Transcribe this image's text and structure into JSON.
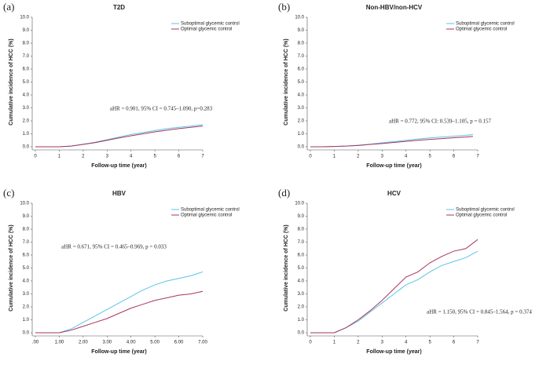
{
  "chart_data": [
    {
      "type": "line",
      "panel_label": "(a)",
      "title": "T2D",
      "ylabel": "Cumulative incidence of HCC (%)",
      "xlabel": "Follow-up time (year)",
      "annotation": "aHR = 0.901, 95% CI = 0.745–1.090, p=0.283",
      "x": [
        0,
        0.5,
        1,
        1.5,
        2,
        2.5,
        3,
        3.5,
        4,
        4.5,
        5,
        5.5,
        6,
        6.5,
        7
      ],
      "series": [
        {
          "name": "Suboptimal glycemic control",
          "color": "#5bc4e6",
          "values": [
            0,
            0,
            0,
            0.05,
            0.2,
            0.35,
            0.55,
            0.75,
            0.95,
            1.1,
            1.25,
            1.4,
            1.5,
            1.6,
            1.7
          ]
        },
        {
          "name": "Optimal glycemic control",
          "color": "#a8345e",
          "values": [
            0,
            0,
            0,
            0.05,
            0.18,
            0.32,
            0.5,
            0.68,
            0.85,
            1.0,
            1.15,
            1.28,
            1.4,
            1.5,
            1.6
          ]
        }
      ],
      "xlim": [
        0,
        7
      ],
      "xticks": [
        0,
        1,
        2,
        3,
        4,
        5,
        6,
        7
      ],
      "ylim": [
        0,
        10
      ],
      "yticks": [
        {
          "value": 0,
          "label": "0.0"
        },
        {
          "value": 1,
          "label": "1.0"
        },
        {
          "value": 2,
          "label": "2.0"
        },
        {
          "value": 3,
          "label": "3.0"
        },
        {
          "value": 4,
          "label": "4.0"
        },
        {
          "value": 5,
          "label": "5.0"
        },
        {
          "value": 6,
          "label": "6.0"
        },
        {
          "value": 7,
          "label": "7.0"
        },
        {
          "value": 8,
          "label": "8.0"
        },
        {
          "value": 9,
          "label": "9.0"
        },
        {
          "value": 10,
          "label": "10.0"
        }
      ]
    },
    {
      "type": "line",
      "panel_label": "(b)",
      "title": "Non-HBV/non-HCV",
      "ylabel": "Cumulative incidence of HCC (%)",
      "xlabel": "Follow-up time (year)",
      "annotation": "aHR = 0.772, 95% CI: 0.539–1.105, p = 0.157",
      "x": [
        0,
        0.5,
        1,
        1.5,
        2,
        2.5,
        3,
        3.5,
        4,
        4.5,
        5,
        5.5,
        6,
        6.5,
        6.8
      ],
      "series": [
        {
          "name": "Suboptimal glycemic control",
          "color": "#5bc4e6",
          "values": [
            0,
            0,
            0.02,
            0.05,
            0.12,
            0.2,
            0.3,
            0.4,
            0.5,
            0.6,
            0.68,
            0.75,
            0.82,
            0.88,
            0.95
          ]
        },
        {
          "name": "Optimal glycemic control",
          "color": "#a8345e",
          "values": [
            0,
            0,
            0.02,
            0.05,
            0.1,
            0.18,
            0.25,
            0.33,
            0.42,
            0.5,
            0.57,
            0.63,
            0.7,
            0.75,
            0.8
          ]
        }
      ],
      "xlim": [
        0,
        7
      ],
      "xticks": [
        0,
        1,
        2,
        3,
        4,
        5,
        6,
        7
      ],
      "ylim": [
        0,
        10
      ],
      "yticks": [
        {
          "value": 0,
          "label": "0.0"
        },
        {
          "value": 1,
          "label": "1.0"
        },
        {
          "value": 2,
          "label": "2.0"
        },
        {
          "value": 3,
          "label": "3.0"
        },
        {
          "value": 4,
          "label": "4.0"
        },
        {
          "value": 5,
          "label": "5.0"
        },
        {
          "value": 6,
          "label": "6.0"
        },
        {
          "value": 7,
          "label": "7.0"
        },
        {
          "value": 8,
          "label": "8.0"
        },
        {
          "value": 9,
          "label": "9.0"
        },
        {
          "value": 10,
          "label": "10.0"
        }
      ]
    },
    {
      "type": "line",
      "panel_label": "(c)",
      "title": "HBV",
      "ylabel": "Cumulative incidence of HCC (%)",
      "xlabel": "Follow-up time (year)",
      "annotation": "aHR = 0.671, 95% CI = 0.465–0.969, p = 0.033",
      "x": [
        0,
        0.5,
        1,
        1.5,
        2,
        2.5,
        3,
        3.5,
        4,
        4.5,
        5,
        5.5,
        6,
        6.5,
        7
      ],
      "series": [
        {
          "name": "Suboptimal glycemic control",
          "color": "#5bc4e6",
          "values": [
            0,
            0,
            0,
            0.3,
            0.8,
            1.3,
            1.8,
            2.3,
            2.8,
            3.3,
            3.7,
            4.0,
            4.2,
            4.4,
            4.7
          ]
        },
        {
          "name": "Optimal glycemic control",
          "color": "#a8345e",
          "values": [
            0,
            0,
            0,
            0.2,
            0.5,
            0.8,
            1.1,
            1.5,
            1.9,
            2.2,
            2.5,
            2.7,
            2.9,
            3.0,
            3.2
          ]
        }
      ],
      "xlim": [
        0,
        7
      ],
      "xticks": [
        {
          "value": 0,
          "label": ".00"
        },
        {
          "value": 1,
          "label": "1.00"
        },
        {
          "value": 2,
          "label": "2.00"
        },
        {
          "value": 3,
          "label": "3.00"
        },
        {
          "value": 4,
          "label": "4.00"
        },
        {
          "value": 5,
          "label": "5.00"
        },
        {
          "value": 6,
          "label": "6.00"
        },
        {
          "value": 7,
          "label": "7.00"
        }
      ],
      "ylim": [
        0,
        10
      ],
      "yticks": [
        {
          "value": 0,
          "label": "0.0"
        },
        {
          "value": 1,
          "label": "1.0"
        },
        {
          "value": 2,
          "label": "2.0"
        },
        {
          "value": 3,
          "label": "3.0"
        },
        {
          "value": 4,
          "label": "4.0"
        },
        {
          "value": 5,
          "label": "5.0"
        },
        {
          "value": 6,
          "label": "6.0"
        },
        {
          "value": 7,
          "label": "7.0"
        },
        {
          "value": 8,
          "label": "8.0"
        },
        {
          "value": 9,
          "label": "9.0"
        },
        {
          "value": 10,
          "label": "10.0"
        }
      ]
    },
    {
      "type": "line",
      "panel_label": "(d)",
      "title": "HCV",
      "ylabel": "Cumulative incidence of HCC (%)",
      "xlabel": "Follow-up time (year)",
      "annotation": "aHR = 1.150, 95% CI = 0.845–1.564, p = 0.374",
      "x": [
        0,
        0.5,
        1,
        1.5,
        2,
        2.5,
        3,
        3.5,
        4,
        4.5,
        5,
        5.5,
        6,
        6.5,
        7
      ],
      "series": [
        {
          "name": "Suboptimal glycemic control",
          "color": "#5bc4e6",
          "values": [
            0,
            0,
            0,
            0.4,
            0.9,
            1.6,
            2.3,
            3.0,
            3.7,
            4.1,
            4.7,
            5.2,
            5.5,
            5.8,
            6.3
          ]
        },
        {
          "name": "Optimal glycemic control",
          "color": "#a8345e",
          "values": [
            0,
            0,
            0,
            0.4,
            1.0,
            1.7,
            2.5,
            3.4,
            4.3,
            4.7,
            5.4,
            5.9,
            6.3,
            6.5,
            7.2
          ]
        }
      ],
      "xlim": [
        0,
        7
      ],
      "xticks": [
        0,
        1,
        2,
        3,
        4,
        5,
        6,
        7
      ],
      "ylim": [
        0,
        10
      ],
      "yticks": [
        {
          "value": 0,
          "label": "0.0"
        },
        {
          "value": 1,
          "label": "1.0"
        },
        {
          "value": 2,
          "label": "2.0"
        },
        {
          "value": 3,
          "label": "3.0"
        },
        {
          "value": 4,
          "label": "4.0"
        },
        {
          "value": 5,
          "label": "5.0"
        },
        {
          "value": 6,
          "label": "6.0"
        },
        {
          "value": 7,
          "label": "7.0"
        },
        {
          "value": 8,
          "label": "8.0"
        },
        {
          "value": 9,
          "label": "9.0"
        },
        {
          "value": 10,
          "label": "10.0"
        }
      ]
    }
  ]
}
